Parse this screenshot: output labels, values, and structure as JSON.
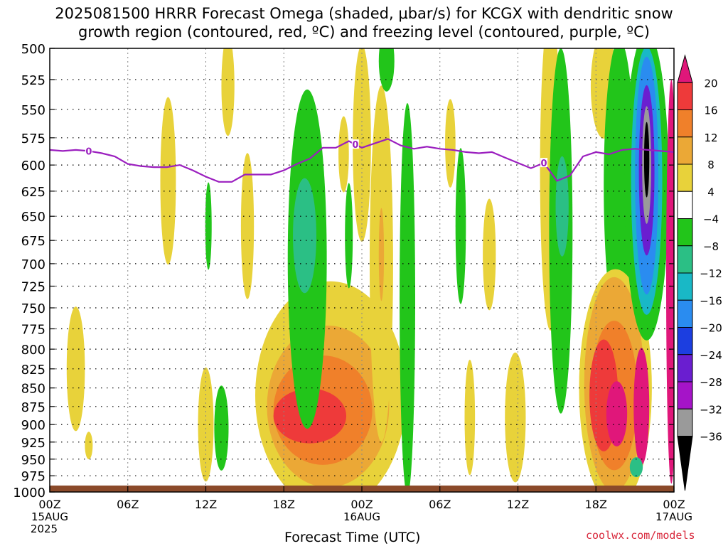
{
  "title": {
    "line1": "2025081500 HRRR Forecast Omega (shaded, μbar/s) for KCGX with dendritic snow",
    "line2": "growth region (contoured, red, ºC) and freezing level (contoured, purple, ºC)"
  },
  "footer": "coolwx.com/models",
  "chart_data": {
    "type": "heatmap",
    "xlabel": "Forecast Time (UTC)",
    "ylabel": "",
    "x_ticks": [
      {
        "hour": 0,
        "label": "00Z",
        "sub1": "15AUG",
        "sub2": "2025"
      },
      {
        "hour": 6,
        "label": "06Z"
      },
      {
        "hour": 12,
        "label": "12Z"
      },
      {
        "hour": 18,
        "label": "18Z"
      },
      {
        "hour": 24,
        "label": "00Z",
        "sub1": "16AUG"
      },
      {
        "hour": 30,
        "label": "06Z"
      },
      {
        "hour": 36,
        "label": "12Z"
      },
      {
        "hour": 42,
        "label": "18Z"
      },
      {
        "hour": 48,
        "label": "00Z",
        "sub1": "17AUG"
      }
    ],
    "xlim": [
      0,
      48
    ],
    "y_ticks": [
      500,
      525,
      550,
      575,
      600,
      625,
      650,
      675,
      700,
      725,
      750,
      775,
      800,
      825,
      850,
      875,
      900,
      925,
      950,
      975,
      1000
    ],
    "ylim": [
      1000,
      500
    ],
    "y_scale": "log-pressure",
    "colorbar": {
      "levels": [
        {
          "from": 20,
          "to": 24,
          "color": "#e0177a"
        },
        {
          "from": 16,
          "to": 20,
          "color": "#ee3a3a"
        },
        {
          "from": 12,
          "to": 16,
          "color": "#f0802a"
        },
        {
          "from": 8,
          "to": 12,
          "color": "#eba836"
        },
        {
          "from": 4,
          "to": 8,
          "color": "#e8d23a"
        },
        {
          "from": -4,
          "to": 4,
          "color": "#ffffff"
        },
        {
          "from": -8,
          "to": -4,
          "color": "#22c51a"
        },
        {
          "from": -12,
          "to": -8,
          "color": "#2bbf85"
        },
        {
          "from": -16,
          "to": -12,
          "color": "#19b8c6"
        },
        {
          "from": -20,
          "to": -16,
          "color": "#2a8cf0"
        },
        {
          "from": -24,
          "to": -20,
          "color": "#1c3ee0"
        },
        {
          "from": -28,
          "to": -24,
          "color": "#6a1ed0"
        },
        {
          "from": -32,
          "to": -28,
          "color": "#a514c8"
        },
        {
          "from": -36,
          "to": -32,
          "color": "#9a9a9a"
        },
        {
          "from": -40,
          "to": -36,
          "color": "#000000"
        }
      ],
      "labels": [
        "20",
        "16",
        "12",
        "8",
        "4",
        "−4",
        "−8",
        "−12",
        "−16",
        "−20",
        "−24",
        "−28",
        "−32",
        "−36"
      ]
    },
    "freezing_level": {
      "label": "0",
      "color": "#9b1fbf",
      "points": [
        [
          0,
          586
        ],
        [
          1,
          587
        ],
        [
          2,
          586
        ],
        [
          3,
          587
        ],
        [
          4,
          589
        ],
        [
          5,
          592
        ],
        [
          6,
          599
        ],
        [
          7,
          601
        ],
        [
          8,
          602
        ],
        [
          9,
          602
        ],
        [
          10,
          600
        ],
        [
          11,
          605
        ],
        [
          12,
          611
        ],
        [
          13,
          616
        ],
        [
          14,
          616
        ],
        [
          15,
          609
        ],
        [
          16,
          609
        ],
        [
          17,
          609
        ],
        [
          18,
          605
        ],
        [
          19,
          599
        ],
        [
          20,
          594
        ],
        [
          21,
          584
        ],
        [
          22,
          584
        ],
        [
          23,
          578
        ],
        [
          24,
          584
        ],
        [
          25,
          580
        ],
        [
          26,
          576
        ],
        [
          27,
          582
        ],
        [
          28,
          585
        ],
        [
          29,
          583
        ],
        [
          30,
          585
        ],
        [
          31,
          586
        ],
        [
          32,
          588
        ],
        [
          33,
          589
        ],
        [
          34,
          588
        ],
        [
          35,
          593
        ],
        [
          36,
          598
        ],
        [
          37,
          603
        ],
        [
          38,
          598
        ],
        [
          39,
          615
        ],
        [
          40,
          610
        ],
        [
          41,
          592
        ],
        [
          42,
          588
        ],
        [
          43,
          590
        ],
        [
          44,
          586
        ],
        [
          45,
          585
        ],
        [
          46,
          586
        ],
        [
          47,
          587
        ],
        [
          48,
          588
        ]
      ],
      "label_hours": [
        3,
        23.5,
        38
      ]
    },
    "omega_features": [
      {
        "level": 4,
        "hour": 2.0,
        "p": 825,
        "rx": 0.7,
        "rp": 80
      },
      {
        "level": 4,
        "hour": 3.0,
        "p": 930,
        "rx": 0.3,
        "rp": 20
      },
      {
        "level": 4,
        "hour": 9.1,
        "p": 615,
        "rx": 0.6,
        "rp": 80
      },
      {
        "level": 4,
        "hour": 13.7,
        "p": 530,
        "rx": 0.5,
        "rp": 55
      },
      {
        "level": 4,
        "hour": 15.2,
        "p": 660,
        "rx": 0.5,
        "rp": 75
      },
      {
        "level": 4,
        "hour": 12.0,
        "p": 900,
        "rx": 0.6,
        "rp": 80
      },
      {
        "level": -4,
        "hour": 12.2,
        "p": 660,
        "rx": 0.25,
        "rp": 45
      },
      {
        "level": -4,
        "hour": 13.2,
        "p": 905,
        "rx": 0.55,
        "rp": 60
      },
      {
        "level": 4,
        "hour": 21.6,
        "p": 860,
        "rx": 5.8,
        "rp": 160
      },
      {
        "level": 8,
        "hour": 21.4,
        "p": 875,
        "rx": 4.7,
        "rp": 110
      },
      {
        "level": 12,
        "hour": 21.0,
        "p": 880,
        "rx": 3.8,
        "rp": 75
      },
      {
        "level": 16,
        "hour": 20.0,
        "p": 888,
        "rx": 2.8,
        "rp": 38
      },
      {
        "level": -4,
        "hour": 19.8,
        "p": 695,
        "rx": 1.5,
        "rp": 180
      },
      {
        "level": -8,
        "hour": 19.6,
        "p": 670,
        "rx": 0.9,
        "rp": 60
      },
      {
        "level": 4,
        "hour": 22.6,
        "p": 590,
        "rx": 0.4,
        "rp": 35
      },
      {
        "level": 4,
        "hour": 25.5,
        "p": 700,
        "rx": 0.9,
        "rp": 190
      },
      {
        "level": 4,
        "hour": 24.0,
        "p": 580,
        "rx": 0.7,
        "rp": 100
      },
      {
        "level": 8,
        "hour": 25.5,
        "p": 690,
        "rx": 0.2,
        "rp": 50
      },
      {
        "level": -4,
        "hour": 25.9,
        "p": 510,
        "rx": 0.6,
        "rp": 40
      },
      {
        "level": -4,
        "hour": 27.5,
        "p": 740,
        "rx": 0.6,
        "rp": 220
      },
      {
        "level": -4,
        "hour": 23.0,
        "p": 670,
        "rx": 0.3,
        "rp": 55
      },
      {
        "level": 4,
        "hour": 30.8,
        "p": 580,
        "rx": 0.4,
        "rp": 40
      },
      {
        "level": -4,
        "hour": 31.6,
        "p": 660,
        "rx": 0.4,
        "rp": 80
      },
      {
        "level": 4,
        "hour": 33.8,
        "p": 690,
        "rx": 0.5,
        "rp": 60
      },
      {
        "level": 4,
        "hour": 32.3,
        "p": 890,
        "rx": 0.4,
        "rp": 80
      },
      {
        "level": 4,
        "hour": 35.8,
        "p": 890,
        "rx": 0.8,
        "rp": 90
      },
      {
        "level": 4,
        "hour": 38.5,
        "p": 605,
        "rx": 0.8,
        "rp": 220
      },
      {
        "level": -4,
        "hour": 39.3,
        "p": 665,
        "rx": 0.9,
        "rp": 220
      },
      {
        "level": -8,
        "hour": 39.4,
        "p": 640,
        "rx": 0.5,
        "rp": 50
      },
      {
        "level": 4,
        "hour": 42.6,
        "p": 530,
        "rx": 1.0,
        "rp": 60
      },
      {
        "level": -4,
        "hour": 43.8,
        "p": 620,
        "rx": 1.2,
        "rp": 170
      },
      {
        "level": 4,
        "hour": 43.5,
        "p": 850,
        "rx": 2.8,
        "rp": 160
      },
      {
        "level": 8,
        "hour": 43.4,
        "p": 845,
        "rx": 2.3,
        "rp": 140
      },
      {
        "level": 12,
        "hour": 43.4,
        "p": 860,
        "rx": 1.8,
        "rp": 100
      },
      {
        "level": 16,
        "hour": 42.6,
        "p": 860,
        "rx": 1.1,
        "rp": 75
      },
      {
        "level": 20,
        "hour": 45.5,
        "p": 875,
        "rx": 0.6,
        "rp": 80
      },
      {
        "level": 20,
        "hour": 43.6,
        "p": 885,
        "rx": 0.8,
        "rp": 45
      },
      {
        "level": -4,
        "hour": 45.9,
        "p": 620,
        "rx": 1.7,
        "rp": 190
      },
      {
        "level": -12,
        "hour": 45.9,
        "p": 615,
        "rx": 1.2,
        "rp": 145
      },
      {
        "level": -16,
        "hour": 45.9,
        "p": 610,
        "rx": 0.9,
        "rp": 115
      },
      {
        "level": -24,
        "hour": 45.9,
        "p": 605,
        "rx": 0.6,
        "rp": 80
      },
      {
        "level": -32,
        "hour": 45.9,
        "p": 600,
        "rx": 0.35,
        "rp": 55
      },
      {
        "level": -36,
        "hour": 45.9,
        "p": 595,
        "rx": 0.2,
        "rp": 35
      },
      {
        "level": -8,
        "hour": 45.1,
        "p": 962,
        "rx": 0.5,
        "rp": 15
      },
      {
        "level": 20,
        "hour": 47.8,
        "p": 720,
        "rx": 0.4,
        "rp": 220
      }
    ],
    "surface_color": "#8b4a2a"
  }
}
